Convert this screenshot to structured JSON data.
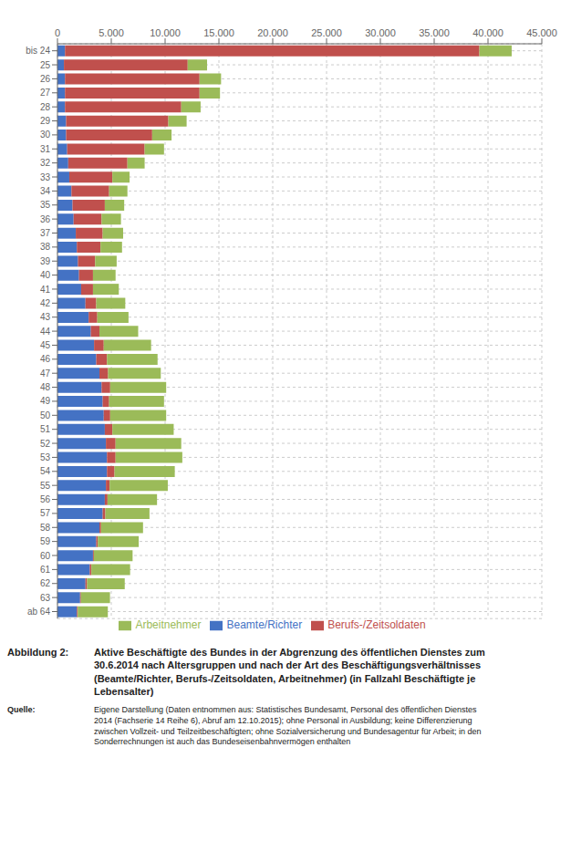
{
  "chart_data": {
    "type": "bar",
    "orientation": "horizontal",
    "stacked": true,
    "grid": true,
    "legend": "bottom",
    "title_label": "Abbildung 2:",
    "title": "Aktive Beschäftigte des Bundes in der Abgrenzung des öffentlichen Dienstes zum\n30.6.2014 nach Altersgruppen und nach der Art des Beschäftigungsverhältnisses\n(Beamte/Richter, Berufs-/Zeitsoldaten, Arbeitnehmer) (in Fallzahl Beschäftigte je\nLebensalter)",
    "source_label": "Quelle:",
    "source": "Eigene Darstellung (Daten entnommen aus: Statistisches Bundesamt, Personal des öffentlichen Dienstes\n2014 (Fachserie 14 Reihe 6), Abruf am 12.10.2015);  ohne Personal in Ausbildung; keine Differenzierung\nzwischen Vollzeit- und Teilzeitbeschäftigten; ohne Sozialversicherung und Bundesagentur für Arbeit; in den\nSonderrechnungen ist auch das Bundeseisenbahnvermögen enthalten",
    "categories": [
      "bis 24",
      "25",
      "26",
      "27",
      "28",
      "29",
      "30",
      "31",
      "32",
      "33",
      "34",
      "35",
      "36",
      "37",
      "38",
      "39",
      "40",
      "41",
      "42",
      "43",
      "44",
      "45",
      "46",
      "47",
      "48",
      "49",
      "50",
      "51",
      "52",
      "53",
      "54",
      "55",
      "56",
      "57",
      "58",
      "59",
      "60",
      "61",
      "62",
      "63",
      "ab 64"
    ],
    "series": [
      {
        "name": "Beamte/Richter",
        "color": "#4472C4",
        "values": [
          700,
          600,
          700,
          700,
          700,
          800,
          800,
          900,
          1000,
          1100,
          1300,
          1400,
          1500,
          1700,
          1800,
          1900,
          2000,
          2200,
          2600,
          2900,
          3100,
          3400,
          3600,
          3900,
          4100,
          4200,
          4300,
          4400,
          4500,
          4600,
          4600,
          4500,
          4400,
          4200,
          3900,
          3600,
          3300,
          3000,
          2600,
          2100,
          1800
        ]
      },
      {
        "name": "Berufs-/Zeitsoldaten",
        "color": "#C0504D",
        "values": [
          38500,
          11500,
          12500,
          12500,
          10800,
          9500,
          8000,
          7200,
          5500,
          4000,
          3500,
          3000,
          2600,
          2500,
          2200,
          1600,
          1300,
          1100,
          1000,
          800,
          800,
          900,
          1000,
          800,
          800,
          600,
          600,
          700,
          900,
          800,
          700,
          350,
          250,
          250,
          150,
          150,
          80,
          150,
          150,
          80,
          80
        ]
      },
      {
        "name": "Arbeitnehmer",
        "color": "#9BBB59",
        "values": [
          3000,
          1800,
          2000,
          1900,
          1800,
          1700,
          1800,
          1800,
          1600,
          1600,
          1700,
          1800,
          1800,
          1900,
          2000,
          2000,
          2100,
          2400,
          2700,
          2900,
          3600,
          4400,
          4700,
          4900,
          5200,
          5100,
          5200,
          5700,
          6100,
          6200,
          5600,
          5400,
          4600,
          4100,
          3900,
          3800,
          3600,
          3600,
          3500,
          2700,
          2800
        ]
      }
    ],
    "xlim": [
      0,
      45000
    ],
    "xticks": [
      0,
      {
        "value": 5000,
        "label": "5.000"
      },
      {
        "value": 10000,
        "label": "10.000"
      },
      {
        "value": 15000,
        "label": "15.000"
      },
      {
        "value": 20000,
        "label": "20.000"
      },
      {
        "value": 25000,
        "label": "25.000"
      },
      {
        "value": 30000,
        "label": "30.000"
      },
      {
        "value": 35000,
        "label": "35.000"
      },
      {
        "value": 40000,
        "label": "40.000"
      },
      {
        "value": 45000,
        "label": "45.000"
      }
    ]
  }
}
